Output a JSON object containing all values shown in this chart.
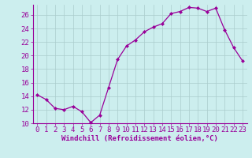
{
  "x": [
    0,
    1,
    2,
    3,
    4,
    5,
    6,
    7,
    8,
    9,
    10,
    11,
    12,
    13,
    14,
    15,
    16,
    17,
    18,
    19,
    20,
    21,
    22,
    23
  ],
  "y": [
    14.2,
    13.5,
    12.2,
    12.0,
    12.5,
    11.7,
    10.1,
    11.2,
    15.3,
    19.4,
    21.4,
    22.3,
    23.5,
    24.2,
    24.7,
    26.2,
    26.5,
    27.1,
    27.0,
    26.5,
    27.0,
    23.8,
    21.2,
    19.2
  ],
  "line_color": "#990099",
  "marker": "D",
  "marker_size": 2,
  "bg_color": "#cceeee",
  "grid_color": "#aacccc",
  "xlabel": "Windchill (Refroidissement éolien,°C)",
  "ylim": [
    10,
    27.5
  ],
  "xlim": [
    -0.5,
    23.5
  ],
  "yticks": [
    10,
    12,
    14,
    16,
    18,
    20,
    22,
    24,
    26
  ],
  "xticks": [
    0,
    1,
    2,
    3,
    4,
    5,
    6,
    7,
    8,
    9,
    10,
    11,
    12,
    13,
    14,
    15,
    16,
    17,
    18,
    19,
    20,
    21,
    22,
    23
  ],
  "tick_color": "#990099",
  "label_color": "#990099",
  "spine_color": "#990099",
  "font_size": 6.5
}
